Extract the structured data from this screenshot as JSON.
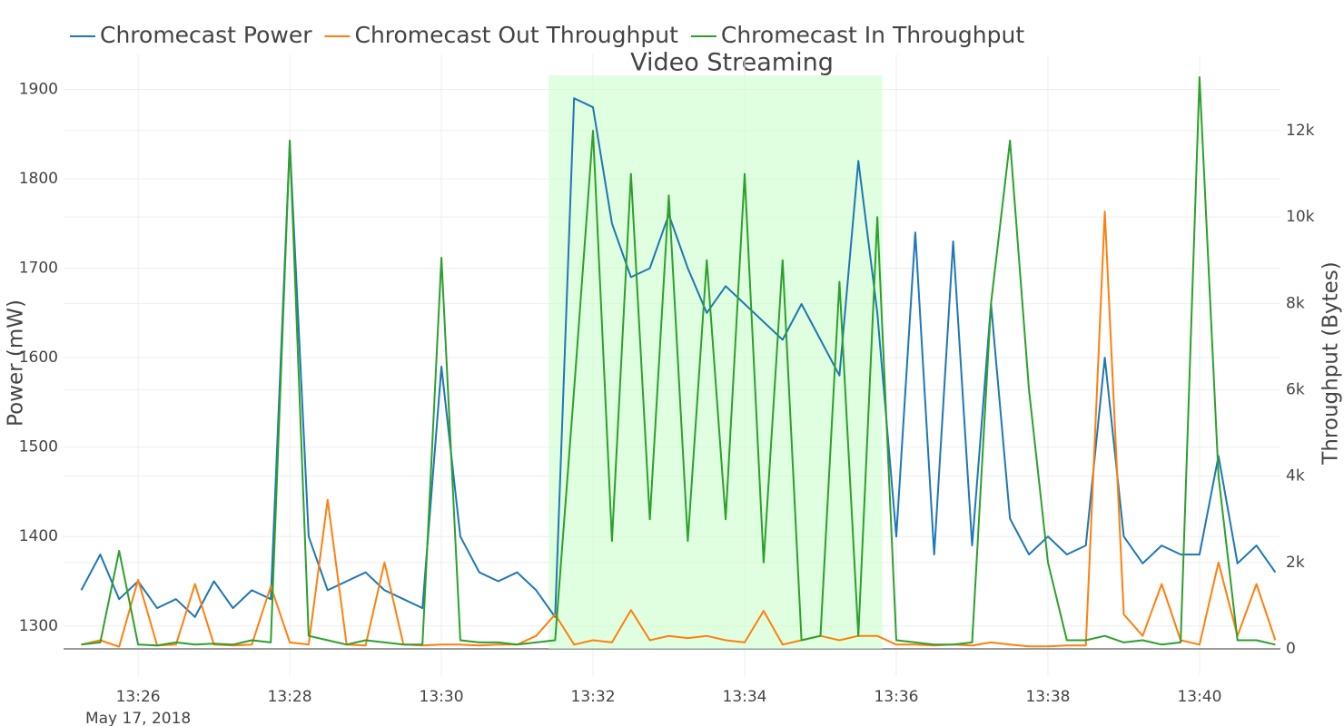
{
  "chart_data": {
    "type": "line",
    "annotation": "Video Streaming",
    "y_label": "Power (mW)",
    "y2_label": "Throughput (Bytes)",
    "x_date_label": "May 17, 2018",
    "grid": true,
    "legend": "top-left",
    "shaded_region": {
      "x0": "2018-05-17 13:31:25",
      "x1": "2018-05-17 13:35:49",
      "y0": 0,
      "y1": 13282,
      "color": "#ccffcc"
    },
    "xlim": [
      "2018-05-17 13:25:01",
      "2018-05-17 13:41:04"
    ],
    "xticks": [
      {
        "value": "2018-05-17 13:26",
        "label": "13:26"
      },
      {
        "value": "2018-05-17 13:28",
        "label": "13:28"
      },
      {
        "value": "2018-05-17 13:30",
        "label": "13:30"
      },
      {
        "value": "2018-05-17 13:32",
        "label": "13:32"
      },
      {
        "value": "2018-05-17 13:34",
        "label": "13:34"
      },
      {
        "value": "2018-05-17 13:36",
        "label": "13:36"
      },
      {
        "value": "2018-05-17 13:38",
        "label": "13:38"
      },
      {
        "value": "2018-05-17 13:40",
        "label": "13:40"
      }
    ],
    "ylim": [
      1244,
      1939
    ],
    "yticks": [
      1300,
      1400,
      1500,
      1600,
      1700,
      1800,
      1900
    ],
    "y2lim": [
      -630,
      13765
    ],
    "y2ticks": [
      0,
      {
        "value": 2000,
        "label": "2k"
      },
      {
        "value": 4000,
        "label": "4k"
      },
      {
        "value": 6000,
        "label": "6k"
      },
      {
        "value": 8000,
        "label": "8k"
      },
      {
        "value": 10000,
        "label": "10k"
      },
      {
        "value": 12000,
        "label": "12k"
      }
    ],
    "x": [
      "2018-05-17 13:25:15",
      "2018-05-17 13:25:30",
      "2018-05-17 13:25:45",
      "2018-05-17 13:26:00",
      "2018-05-17 13:26:15",
      "2018-05-17 13:26:30",
      "2018-05-17 13:26:45",
      "2018-05-17 13:27:00",
      "2018-05-17 13:27:15",
      "2018-05-17 13:27:30",
      "2018-05-17 13:27:45",
      "2018-05-17 13:28:00",
      "2018-05-17 13:28:15",
      "2018-05-17 13:28:30",
      "2018-05-17 13:28:45",
      "2018-05-17 13:29:00",
      "2018-05-17 13:29:15",
      "2018-05-17 13:29:30",
      "2018-05-17 13:29:45",
      "2018-05-17 13:30:00",
      "2018-05-17 13:30:15",
      "2018-05-17 13:30:30",
      "2018-05-17 13:30:45",
      "2018-05-17 13:31:00",
      "2018-05-17 13:31:15",
      "2018-05-17 13:31:30",
      "2018-05-17 13:31:45",
      "2018-05-17 13:32:00",
      "2018-05-17 13:32:15",
      "2018-05-17 13:32:30",
      "2018-05-17 13:32:45",
      "2018-05-17 13:33:00",
      "2018-05-17 13:33:15",
      "2018-05-17 13:33:30",
      "2018-05-17 13:33:45",
      "2018-05-17 13:34:00",
      "2018-05-17 13:34:15",
      "2018-05-17 13:34:30",
      "2018-05-17 13:34:45",
      "2018-05-17 13:35:00",
      "2018-05-17 13:35:15",
      "2018-05-17 13:35:30",
      "2018-05-17 13:35:45",
      "2018-05-17 13:36:00",
      "2018-05-17 13:36:15",
      "2018-05-17 13:36:30",
      "2018-05-17 13:36:45",
      "2018-05-17 13:37:00",
      "2018-05-17 13:37:15",
      "2018-05-17 13:37:30",
      "2018-05-17 13:37:45",
      "2018-05-17 13:38:00",
      "2018-05-17 13:38:15",
      "2018-05-17 13:38:30",
      "2018-05-17 13:38:45",
      "2018-05-17 13:39:00",
      "2018-05-17 13:39:15",
      "2018-05-17 13:39:30",
      "2018-05-17 13:39:45",
      "2018-05-17 13:40:00",
      "2018-05-17 13:40:15",
      "2018-05-17 13:40:30",
      "2018-05-17 13:40:45",
      "2018-05-17 13:41:00"
    ],
    "series": [
      {
        "name": "Chromecast Power",
        "color": "#1f77b4",
        "axis": "y",
        "values": [
          1340,
          1380,
          1330,
          1350,
          1320,
          1330,
          1310,
          1350,
          1320,
          1340,
          1330,
          1840,
          1400,
          1340,
          1350,
          1360,
          1340,
          1330,
          1320,
          1590,
          1400,
          1360,
          1350,
          1360,
          1340,
          1310,
          1890,
          1880,
          1750,
          1690,
          1700,
          1760,
          1700,
          1650,
          1680,
          1660,
          1640,
          1620,
          1660,
          1620,
          1580,
          1820,
          1650,
          1400,
          1740,
          1380,
          1730,
          1390,
          1660,
          1420,
          1380,
          1400,
          1380,
          1390,
          1600,
          1400,
          1370,
          1390,
          1380,
          1380,
          1490,
          1370,
          1390,
          1360
        ]
      },
      {
        "name": "Chromecast Out Throughput",
        "color": "#ff7f0e",
        "axis": "y2",
        "values": [
          100,
          200,
          50,
          1600,
          80,
          100,
          1500,
          100,
          80,
          100,
          1450,
          150,
          100,
          3450,
          100,
          80,
          2000,
          100,
          80,
          100,
          100,
          80,
          100,
          100,
          300,
          800,
          100,
          200,
          150,
          900,
          200,
          300,
          250,
          300,
          200,
          150,
          880,
          100,
          200,
          300,
          200,
          300,
          300,
          100,
          100,
          80,
          100,
          80,
          150,
          100,
          60,
          60,
          80,
          80,
          10130,
          800,
          300,
          1500,
          200,
          100,
          2000,
          300,
          1500,
          200
        ]
      },
      {
        "name": "Chromecast In Throughput",
        "color": "#2ca02c",
        "axis": "y2",
        "values": [
          100,
          150,
          2270,
          100,
          80,
          150,
          100,
          120,
          100,
          200,
          150,
          11770,
          300,
          200,
          100,
          200,
          150,
          100,
          100,
          9060,
          200,
          150,
          150,
          100,
          150,
          200,
          6000,
          12000,
          2500,
          11000,
          3000,
          10500,
          2500,
          9000,
          3000,
          11000,
          2000,
          9000,
          200,
          300,
          8500,
          300,
          10000,
          200,
          150,
          100,
          100,
          150,
          8000,
          11770,
          6000,
          2000,
          200,
          200,
          300,
          150,
          200,
          100,
          150,
          13240,
          4000,
          200,
          200,
          100
        ]
      }
    ]
  }
}
